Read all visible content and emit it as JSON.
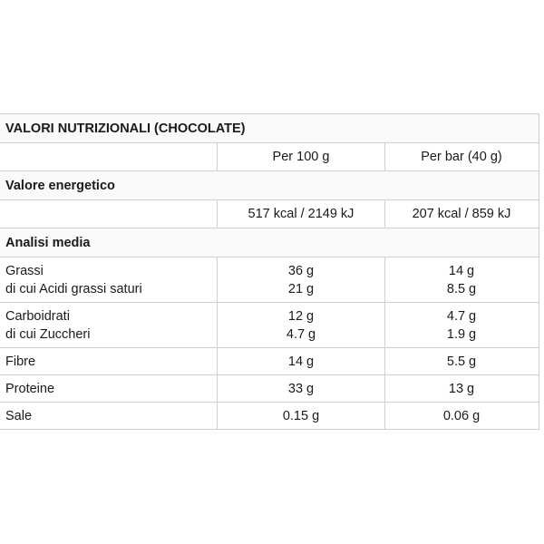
{
  "table": {
    "title": "VALORI NUTRIZIONALI (CHOCOLATE)",
    "columns": [
      "",
      "Per 100 g",
      "Per bar (40 g)"
    ],
    "section_energy": "Valore energetico",
    "energy": {
      "per100": "517 kcal / 2149 kJ",
      "perbar": "207 kcal / 859 kJ"
    },
    "section_analysis": "Analisi media",
    "rows": [
      {
        "label": "Grassi",
        "sub_label": "di cui Acidi grassi saturi",
        "per100": "36 g",
        "per100_sub": "21 g",
        "perbar": "14 g",
        "perbar_sub": "8.5 g"
      },
      {
        "label": "Carboidrati",
        "sub_label": "di cui Zuccheri",
        "per100": "12 g",
        "per100_sub": "4.7 g",
        "perbar": "4.7 g",
        "perbar_sub": "1.9 g"
      },
      {
        "label": "Fibre",
        "per100": "14 g",
        "perbar": "5.5 g"
      },
      {
        "label": "Proteine",
        "per100": "33 g",
        "perbar": "13 g"
      },
      {
        "label": "Sale",
        "per100": "0.15 g",
        "perbar": "0.06 g"
      }
    ]
  }
}
